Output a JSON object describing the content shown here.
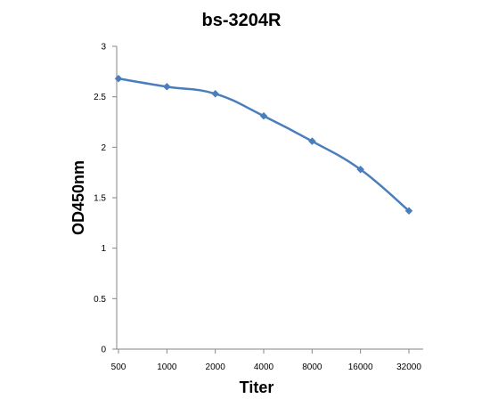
{
  "chart_data": {
    "type": "line",
    "title": "bs-3204R",
    "xlabel": "Titer",
    "ylabel": "OD450nm",
    "categories": [
      "500",
      "1000",
      "2000",
      "4000",
      "8000",
      "16000",
      "32000"
    ],
    "series": [
      {
        "values": [
          2.68,
          2.6,
          2.53,
          2.31,
          2.06,
          1.78,
          1.37
        ]
      }
    ],
    "ylim": [
      0,
      3
    ],
    "yticks": [
      "0",
      "0.5",
      "1",
      "1.5",
      "2",
      "2.5",
      "3"
    ],
    "grid": false,
    "legend": "none",
    "line_color": "#4a7ebb",
    "axis_color": "#868686"
  }
}
